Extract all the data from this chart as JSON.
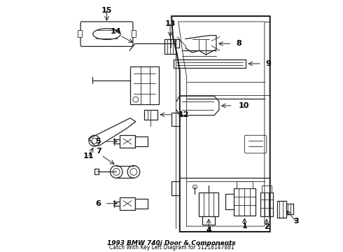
{
  "title_line1": "1993 BMW 740i Door & Components",
  "title_line2": "Catch With Key Left Diagram for 51218147881",
  "bg_color": "#ffffff",
  "line_color": "#222222",
  "label_color": "#000000",
  "label_fontsize": 8,
  "figsize": [
    4.9,
    3.6
  ],
  "dpi": 100
}
